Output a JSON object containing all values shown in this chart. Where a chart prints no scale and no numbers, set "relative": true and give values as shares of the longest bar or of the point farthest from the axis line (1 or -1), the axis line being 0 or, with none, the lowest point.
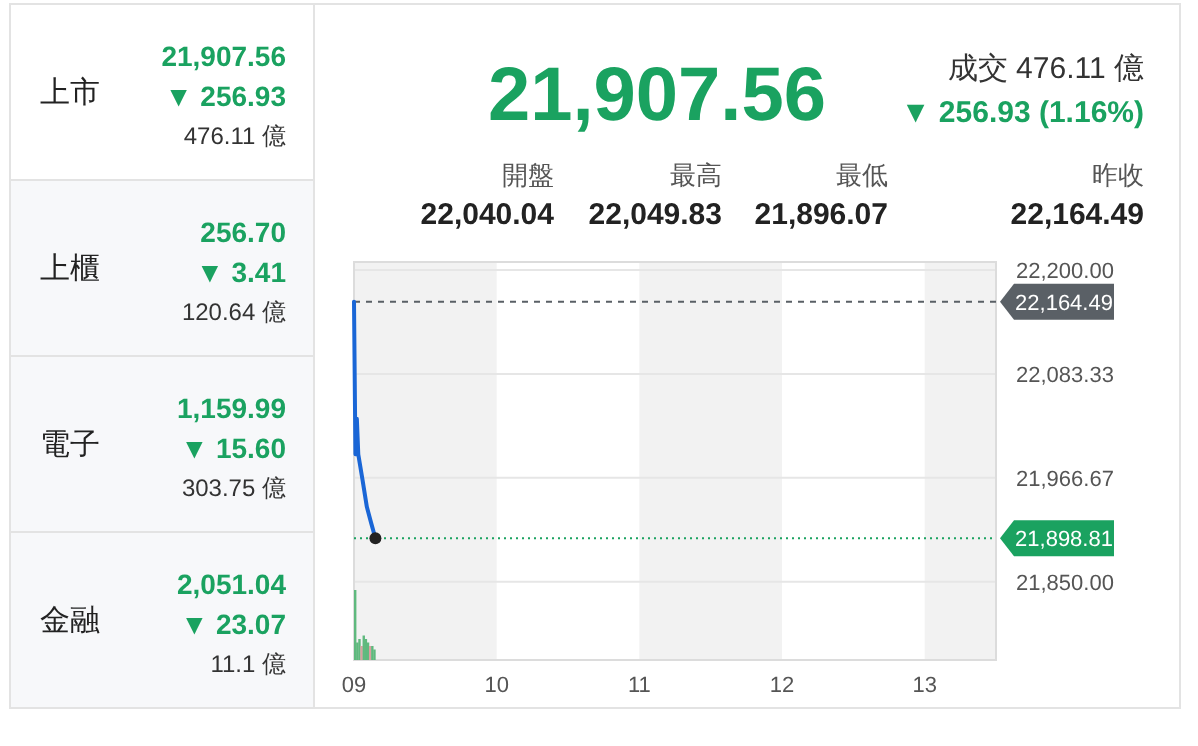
{
  "chart_data": [
    {
      "type": "other",
      "annotations": [
        "上市",
        "21,907.56",
        "▼ 256.93",
        "476.11 億",
        "上櫃",
        "256.70",
        "▼ 3.41",
        "120.64 億",
        "電子",
        "1,159.99",
        "▼ 15.60",
        "303.75 億",
        "金融",
        "2,051.04",
        "▼ 23.07",
        "11.1 億"
      ]
    },
    {
      "type": "other",
      "annotations": [
        "21,907.56",
        "成交 476.11 億",
        "▼ 256.93 (1.16%)",
        "開盤",
        "最高",
        "最低",
        "昨收",
        "22,040.04",
        "22,049.83",
        "21,896.07",
        "22,164.49"
      ]
    },
    {
      "type": "line",
      "x": [
        9,
        9.01,
        9.02,
        9.03,
        9.06,
        9.09,
        9.12,
        9.15
      ],
      "series": [
        {
          "type": "line",
          "color": "#1a66d6",
          "values": [
            22164.49,
            21993,
            22033,
            21993,
            21964,
            21934,
            21916,
            21898.81
          ]
        },
        {
          "type": "scatter",
          "color": "#222222",
          "x": [
            9.15
          ],
          "values": [
            21898.81
          ]
        }
      ],
      "xlim": [
        9,
        13.5
      ],
      "xticks": [
        {
          "value": 9,
          "label": "09"
        },
        {
          "value": 10,
          "label": "10"
        },
        {
          "value": 11,
          "label": "11"
        },
        {
          "value": 12,
          "label": "12"
        },
        {
          "value": 13,
          "label": "13"
        }
      ],
      "ylim": [
        21762,
        22209
      ],
      "yticks": [
        {
          "value": 22200,
          "label": "22,200.00"
        },
        {
          "value": 22083.33,
          "label": "22,083.33"
        },
        {
          "value": 21966.67,
          "label": "21,966.67"
        },
        {
          "value": 21850,
          "label": "21,850.00"
        }
      ],
      "grid": "y",
      "line_style": "solid",
      "ref_lines": [
        {
          "axis": "y",
          "value": 22164.49,
          "label": "22,164.49",
          "color": "#5a6066",
          "line_style": "dashed"
        },
        {
          "axis": "y",
          "value": 21898.81,
          "label": "21,898.81",
          "color": "#1aa260",
          "line_style": "dotted"
        }
      ],
      "bands": [
        {
          "axis": "x",
          "from": 9,
          "to": 10,
          "color": "#f2f2f2"
        },
        {
          "axis": "x",
          "from": 11,
          "to": 12,
          "color": "#f2f2f2"
        },
        {
          "axis": "x",
          "from": 13,
          "to": 13.5,
          "color": "#f2f2f2"
        }
      ]
    },
    {
      "type": "bar",
      "relative": true,
      "x": [
        9,
        9.015,
        9.03,
        9.045,
        9.06,
        9.075,
        9.09,
        9.105,
        9.12,
        9.135
      ],
      "xlim": [
        9,
        13.5
      ],
      "tick_labels": false,
      "colors": [
        "#5fb97e",
        "#5fb97e",
        "#5fb97e",
        "#d9a0a0",
        "#5fb97e",
        "#5fb97e",
        "#5fb97e",
        "#d9a0a0",
        "#5fb97e",
        "#5fb97e"
      ],
      "values": [
        1,
        0.25,
        0.3,
        0.2,
        0.35,
        0.3,
        0.25,
        0.2,
        0.2,
        0.15
      ]
    }
  ]
}
